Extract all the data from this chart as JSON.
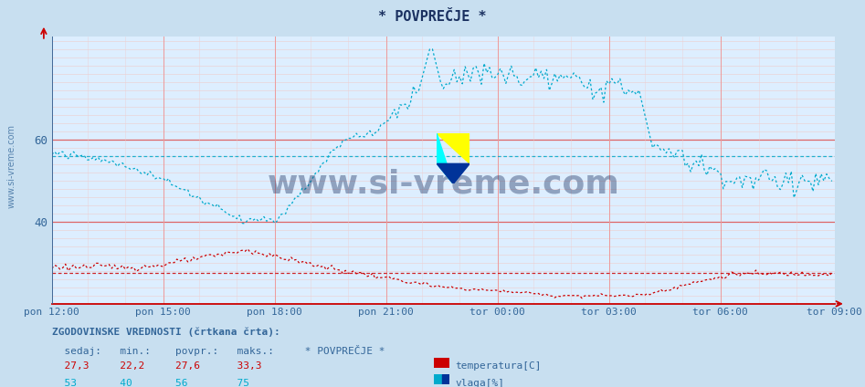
{
  "title": "* POVPREČJE *",
  "bg_color": "#c8dff0",
  "plot_bg_color": "#ddeeff",
  "grid_h_color": "#dd6666",
  "grid_v_color": "#ee9999",
  "fine_grid_color": "#eecccc",
  "title_color": "#1a3060",
  "ylabel_color": "#336699",
  "xlabel_color": "#336699",
  "axis_color": "#336699",
  "ylim": [
    20,
    85
  ],
  "yticks": [
    40,
    60
  ],
  "x_labels": [
    "pon 12:00",
    "pon 15:00",
    "pon 18:00",
    "pon 21:00",
    "tor 00:00",
    "tor 03:00",
    "tor 06:00",
    "tor 09:00"
  ],
  "x_tick_frac": [
    0.0,
    0.143,
    0.286,
    0.429,
    0.571,
    0.714,
    0.857,
    1.0
  ],
  "total_points": 288,
  "temp_color": "#cc0000",
  "vlaga_color": "#00aacc",
  "avg_temp": 27.6,
  "avg_vlaga": 56.0,
  "watermark": "www.si-vreme.com",
  "watermark_color": "#1a3060",
  "legend_title": "* POVPREČJE *",
  "legend_color": "#336699",
  "footer_title": "ZGODOVINSKE VREDNOSTI (črtkana črta):",
  "sedaj_temp": "27,3",
  "min_temp": "22,2",
  "povpr_temp": "27,6",
  "maks_temp": "33,3",
  "sedaj_vlaga": "53",
  "min_vlaga": "40",
  "povpr_vlaga": "56",
  "maks_vlaga": "75",
  "col1_label": "sedaj:",
  "col2_label": "min.:",
  "col3_label": "povpr.:",
  "col4_label": "maks.:",
  "temp_label": "temperatura[C]",
  "vlaga_label": "vlaga[%]"
}
